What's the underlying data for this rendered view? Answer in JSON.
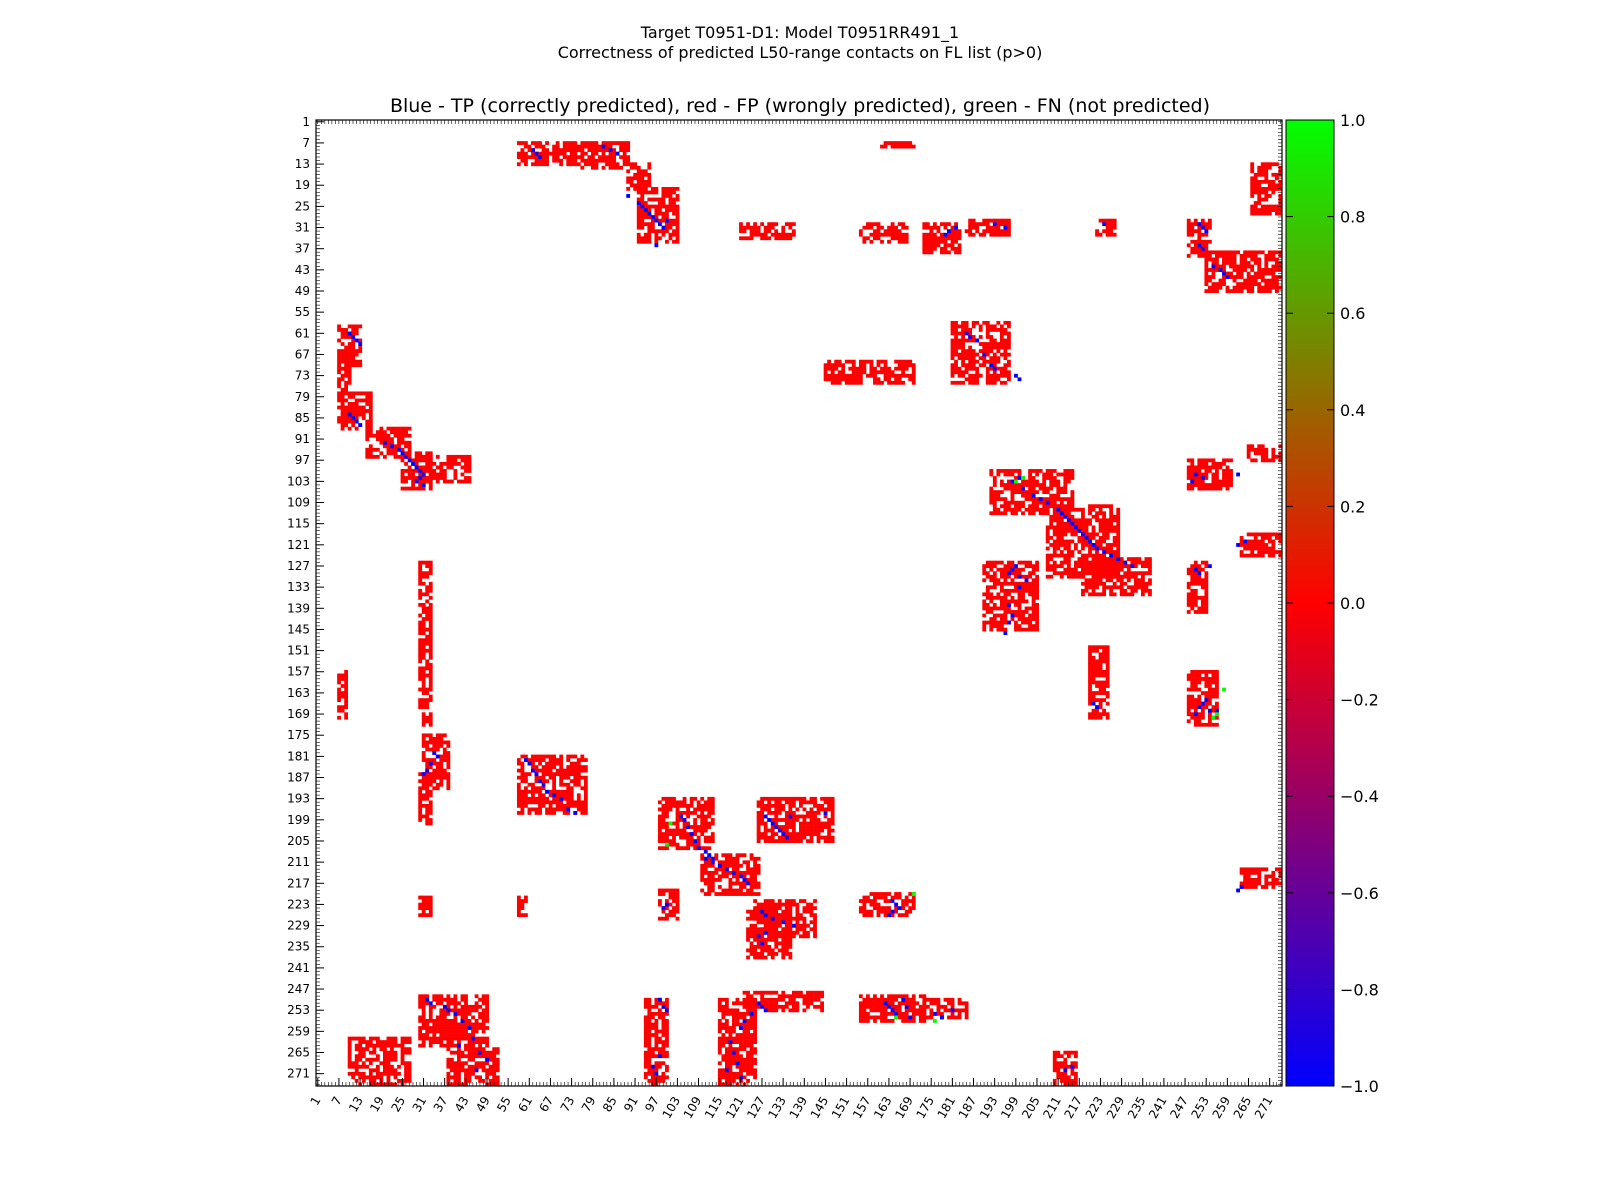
{
  "figure": {
    "suptitle_line1": "Target T0951-D1: Model T0951RR491_1",
    "suptitle_line2": "Correctness of predicted L50-range contacts on FL list (p>0)"
  },
  "chart_data": {
    "type": "heatmap",
    "title": "Blue - TP (correctly predicted), red - FP (wrongly predicted), green - FN (not predicted)",
    "xlabel": "",
    "ylabel": "",
    "residue_range": [
      1,
      274
    ],
    "tick_labels": [
      "1",
      "7",
      "13",
      "19",
      "25",
      "31",
      "37",
      "43",
      "49",
      "55",
      "61",
      "67",
      "73",
      "79",
      "85",
      "91",
      "97",
      "103",
      "109",
      "115",
      "121",
      "127",
      "133",
      "139",
      "145",
      "151",
      "157",
      "163",
      "169",
      "175",
      "181",
      "187",
      "193",
      "199",
      "205",
      "211",
      "217",
      "223",
      "229",
      "235",
      "241",
      "247",
      "253",
      "259",
      "265",
      "271"
    ],
    "colorbar": {
      "range": [
        -1.0,
        1.0
      ],
      "colors": [
        "#0000ff",
        "#ff0000",
        "#00ff00"
      ],
      "tick_labels": [
        "1.0",
        "0.8",
        "0.6",
        "0.4",
        "0.2",
        "0.0",
        "−0.2",
        "−0.4",
        "−0.6",
        "−0.8",
        "−1.0"
      ]
    },
    "legend": [
      {
        "label": "TP",
        "value": -1.0,
        "color": "#0000ff"
      },
      {
        "label": "FP",
        "value": 0.0,
        "color": "#ff0000"
      },
      {
        "label": "FN",
        "value": 1.0,
        "color": "#00ff00"
      }
    ],
    "fp_regions": [
      {
        "i": [
          7,
          13
        ],
        "j": [
          58,
          75
        ]
      },
      {
        "i": [
          7,
          14
        ],
        "j": [
          76,
          89
        ]
      },
      {
        "i": [
          13,
          20
        ],
        "j": [
          89,
          95
        ]
      },
      {
        "i": [
          20,
          35
        ],
        "j": [
          92,
          103
        ]
      },
      {
        "i": [
          7,
          8
        ],
        "j": [
          161,
          170
        ]
      },
      {
        "i": [
          30,
          34
        ],
        "j": [
          121,
          136
        ]
      },
      {
        "i": [
          30,
          35
        ],
        "j": [
          155,
          168
        ]
      },
      {
        "i": [
          30,
          38
        ],
        "j": [
          173,
          183
        ]
      },
      {
        "i": [
          29,
          33
        ],
        "j": [
          185,
          197
        ]
      },
      {
        "i": [
          29,
          33
        ],
        "j": [
          222,
          227
        ]
      },
      {
        "i": [
          29,
          39
        ],
        "j": [
          248,
          254
        ]
      },
      {
        "i": [
          38,
          49
        ],
        "j": [
          253,
          274
        ]
      },
      {
        "i": [
          13,
          27
        ],
        "j": [
          266,
          274
        ]
      },
      {
        "i": [
          58,
          75
        ],
        "j": [
          181,
          197
        ]
      },
      {
        "i": [
          69,
          75
        ],
        "j": [
          145,
          170
        ]
      },
      {
        "i": [
          59,
          70
        ],
        "j": [
          7,
          13
        ]
      },
      {
        "i": [
          70,
          77
        ],
        "j": [
          7,
          10
        ]
      },
      {
        "i": [
          78,
          88
        ],
        "j": [
          7,
          16
        ]
      },
      {
        "i": [
          88,
          96
        ],
        "j": [
          15,
          27
        ]
      },
      {
        "i": [
          95,
          105
        ],
        "j": [
          25,
          33
        ]
      },
      {
        "i": [
          96,
          103
        ],
        "j": [
          30,
          44
        ]
      },
      {
        "i": [
          100,
          112
        ],
        "j": [
          192,
          215
        ]
      },
      {
        "i": [
          110,
          130
        ],
        "j": [
          208,
          228
        ]
      },
      {
        "i": [
          125,
          135
        ],
        "j": [
          218,
          237
        ]
      },
      {
        "i": [
          126,
          145
        ],
        "j": [
          190,
          205
        ]
      },
      {
        "i": [
          126,
          140
        ],
        "j": [
          248,
          253
        ]
      },
      {
        "i": [
          97,
          105
        ],
        "j": [
          248,
          260
        ]
      },
      {
        "i": [
          93,
          97
        ],
        "j": [
          265,
          274
        ]
      },
      {
        "i": [
          118,
          124
        ],
        "j": [
          263,
          274
        ]
      },
      {
        "i": [
          126,
          172
        ],
        "j": [
          30,
          33
        ]
      },
      {
        "i": [
          157,
          170
        ],
        "j": [
          7,
          9
        ]
      },
      {
        "i": [
          150,
          170
        ],
        "j": [
          220,
          225
        ]
      },
      {
        "i": [
          157,
          172
        ],
        "j": [
          248,
          256
        ]
      },
      {
        "i": [
          175,
          190
        ],
        "j": [
          31,
          38
        ]
      },
      {
        "i": [
          186,
          200
        ],
        "j": [
          30,
          33
        ]
      },
      {
        "i": [
          181,
          197
        ],
        "j": [
          58,
          77
        ]
      },
      {
        "i": [
          193,
          207
        ],
        "j": [
          98,
          113
        ]
      },
      {
        "i": [
          193,
          205
        ],
        "j": [
          126,
          147
        ]
      },
      {
        "i": [
          209,
          220
        ],
        "j": [
          110,
          126
        ]
      },
      {
        "i": [
          220,
          226
        ],
        "j": [
          155,
          170
        ]
      },
      {
        "i": [
          222,
          232
        ],
        "j": [
          125,
          142
        ]
      },
      {
        "i": [
          225,
          238
        ],
        "j": [
          123,
          135
        ]
      },
      {
        "i": [
          221,
          226
        ],
        "j": [
          30,
          33
        ]
      },
      {
        "i": [
          221,
          226
        ],
        "j": [
          58,
          60
        ]
      },
      {
        "i": [
          219,
          227
        ],
        "j": [
          98,
          103
        ]
      },
      {
        "i": [
          249,
          263
        ],
        "j": [
          30,
          49
        ]
      },
      {
        "i": [
          250,
          274
        ],
        "j": [
          115,
          125
        ]
      },
      {
        "i": [
          248,
          253
        ],
        "j": [
          122,
          144
        ]
      },
      {
        "i": [
          249,
          256
        ],
        "j": [
          155,
          173
        ]
      },
      {
        "i": [
          250,
          255
        ],
        "j": [
          173,
          185
        ]
      },
      {
        "i": [
          250,
          274
        ],
        "j": [
          94,
          100
        ]
      },
      {
        "i": [
          261,
          274
        ],
        "j": [
          10,
          27
        ]
      },
      {
        "i": [
          264,
          274
        ],
        "j": [
          38,
          52
        ]
      },
      {
        "i": [
          213,
          218
        ],
        "j": [
          263,
          274
        ]
      },
      {
        "i": [
          265,
          274
        ],
        "j": [
          210,
          216
        ]
      }
    ],
    "tp_points": [
      [
        9,
        62
      ],
      [
        10,
        63
      ],
      [
        11,
        64
      ],
      [
        8,
        82
      ],
      [
        9,
        84
      ],
      [
        10,
        86
      ],
      [
        22,
        89
      ],
      [
        24,
        92
      ],
      [
        25,
        93
      ],
      [
        26,
        94
      ],
      [
        27,
        95
      ],
      [
        28,
        96
      ],
      [
        29,
        97
      ],
      [
        30,
        98
      ],
      [
        31,
        99
      ],
      [
        29,
        100
      ],
      [
        36,
        97
      ],
      [
        31,
        182
      ],
      [
        32,
        180
      ],
      [
        33,
        179
      ],
      [
        30,
        193
      ],
      [
        31,
        196
      ],
      [
        30,
        224
      ],
      [
        30,
        251
      ],
      [
        31,
        252
      ],
      [
        32,
        253
      ],
      [
        36,
        251
      ],
      [
        37,
        252
      ],
      [
        42,
        255
      ],
      [
        43,
        257
      ],
      [
        44,
        258
      ],
      [
        45,
        259
      ],
      [
        61,
        185
      ],
      [
        62,
        186
      ],
      [
        63,
        188
      ],
      [
        67,
        190
      ],
      [
        70,
        192
      ],
      [
        71,
        193
      ],
      [
        73,
        199
      ],
      [
        74,
        200
      ],
      [
        61,
        10
      ],
      [
        62,
        11
      ],
      [
        63,
        12
      ],
      [
        64,
        13
      ],
      [
        84,
        10
      ],
      [
        85,
        11
      ],
      [
        86,
        12
      ],
      [
        87,
        13
      ],
      [
        92,
        20
      ],
      [
        93,
        22
      ],
      [
        94,
        24
      ],
      [
        95,
        25
      ],
      [
        96,
        26
      ],
      [
        97,
        27
      ],
      [
        98,
        28
      ],
      [
        99,
        29
      ],
      [
        100,
        30
      ],
      [
        101,
        31
      ],
      [
        102,
        30
      ],
      [
        103,
        29
      ],
      [
        104,
        31
      ],
      [
        102,
        200
      ],
      [
        103,
        198
      ],
      [
        105,
        201
      ],
      [
        107,
        204
      ],
      [
        108,
        206
      ],
      [
        109,
        208
      ],
      [
        111,
        211
      ],
      [
        112,
        212
      ],
      [
        113,
        213
      ],
      [
        114,
        214
      ],
      [
        115,
        215
      ],
      [
        116,
        216
      ],
      [
        117,
        217
      ],
      [
        118,
        218
      ],
      [
        119,
        219
      ],
      [
        120,
        220
      ],
      [
        121,
        221
      ],
      [
        122,
        222
      ],
      [
        123,
        224
      ],
      [
        124,
        226
      ],
      [
        125,
        228
      ],
      [
        126,
        230
      ],
      [
        127,
        232
      ],
      [
        129,
        197
      ],
      [
        128,
        198
      ],
      [
        127,
        199
      ],
      [
        130,
        200
      ],
      [
        131,
        202
      ],
      [
        133,
        200
      ],
      [
        138,
        197
      ],
      [
        141,
        198
      ],
      [
        143,
        197
      ],
      [
        146,
        196
      ],
      [
        101,
        250
      ],
      [
        102,
        252
      ],
      [
        103,
        249
      ],
      [
        128,
        250
      ],
      [
        129,
        251
      ],
      [
        127,
        254
      ],
      [
        101,
        262
      ],
      [
        121,
        262
      ],
      [
        120,
        264
      ],
      [
        165,
        253
      ],
      [
        166,
        252
      ],
      [
        167,
        251
      ],
      [
        168,
        254
      ],
      [
        169,
        250
      ],
      [
        168,
        256
      ],
      [
        170,
        255
      ],
      [
        166,
        221
      ],
      [
        167,
        222
      ],
      [
        180,
        34
      ],
      [
        181,
        35
      ],
      [
        183,
        33
      ],
      [
        185,
        32
      ],
      [
        186,
        31
      ],
      [
        182,
        60
      ],
      [
        183,
        61
      ],
      [
        185,
        62
      ],
      [
        186,
        63
      ],
      [
        188,
        64
      ],
      [
        189,
        65
      ],
      [
        191,
        66
      ],
      [
        192,
        68
      ],
      [
        193,
        70
      ],
      [
        196,
        72
      ],
      [
        197,
        74
      ],
      [
        198,
        104
      ],
      [
        199,
        105
      ],
      [
        201,
        106
      ],
      [
        203,
        107
      ],
      [
        205,
        108
      ],
      [
        207,
        109
      ],
      [
        208,
        111
      ],
      [
        209,
        112
      ],
      [
        210,
        113
      ],
      [
        198,
        128
      ],
      [
        199,
        129
      ],
      [
        200,
        130
      ],
      [
        201,
        131
      ],
      [
        202,
        132
      ],
      [
        203,
        133
      ],
      [
        204,
        134
      ],
      [
        198,
        135
      ],
      [
        197,
        145
      ],
      [
        210,
        111
      ],
      [
        211,
        113
      ],
      [
        212,
        115
      ],
      [
        213,
        117
      ],
      [
        214,
        119
      ],
      [
        215,
        121
      ],
      [
        216,
        122
      ],
      [
        217,
        123
      ],
      [
        222,
        164
      ],
      [
        223,
        165
      ],
      [
        224,
        166
      ],
      [
        225,
        164
      ],
      [
        226,
        163
      ],
      [
        218,
        263
      ],
      [
        219,
        262
      ],
      [
        224,
        99
      ],
      [
        223,
        100
      ],
      [
        225,
        127
      ],
      [
        226,
        128
      ],
      [
        227,
        130
      ],
      [
        228,
        133
      ],
      [
        229,
        136
      ],
      [
        231,
        128
      ],
      [
        232,
        126
      ],
      [
        234,
        127
      ],
      [
        251,
        126
      ],
      [
        252,
        127
      ],
      [
        253,
        128
      ],
      [
        254,
        124
      ],
      [
        256,
        122
      ],
      [
        258,
        121
      ],
      [
        262,
        118
      ],
      [
        265,
        119
      ],
      [
        268,
        120
      ],
      [
        270,
        117
      ],
      [
        272,
        121
      ],
      [
        250,
        32
      ],
      [
        251,
        33
      ],
      [
        252,
        37
      ],
      [
        253,
        38
      ],
      [
        254,
        40
      ],
      [
        256,
        42
      ],
      [
        258,
        44
      ],
      [
        261,
        45
      ],
      [
        263,
        41
      ],
      [
        265,
        47
      ],
      [
        267,
        49
      ],
      [
        270,
        46
      ],
      [
        250,
        98
      ],
      [
        252,
        99
      ],
      [
        253,
        100
      ],
      [
        266,
        98
      ],
      [
        269,
        96
      ],
      [
        271,
        97
      ],
      [
        251,
        162
      ],
      [
        252,
        163
      ],
      [
        253,
        164
      ],
      [
        254,
        165
      ],
      [
        250,
        167
      ],
      [
        252,
        168
      ],
      [
        255,
        169
      ],
      [
        254,
        176
      ],
      [
        255,
        178
      ],
      [
        253,
        181
      ],
      [
        269,
        215
      ],
      [
        270,
        213
      ]
    ],
    "fn_points": [
      [
        102,
        201
      ],
      [
        162,
        258
      ],
      [
        169,
        256
      ],
      [
        206,
        100
      ],
      [
        200,
        101
      ],
      [
        220,
        170
      ],
      [
        170,
        255
      ],
      [
        255,
        165
      ],
      [
        256,
        176
      ],
      [
        103,
        199
      ]
    ]
  }
}
